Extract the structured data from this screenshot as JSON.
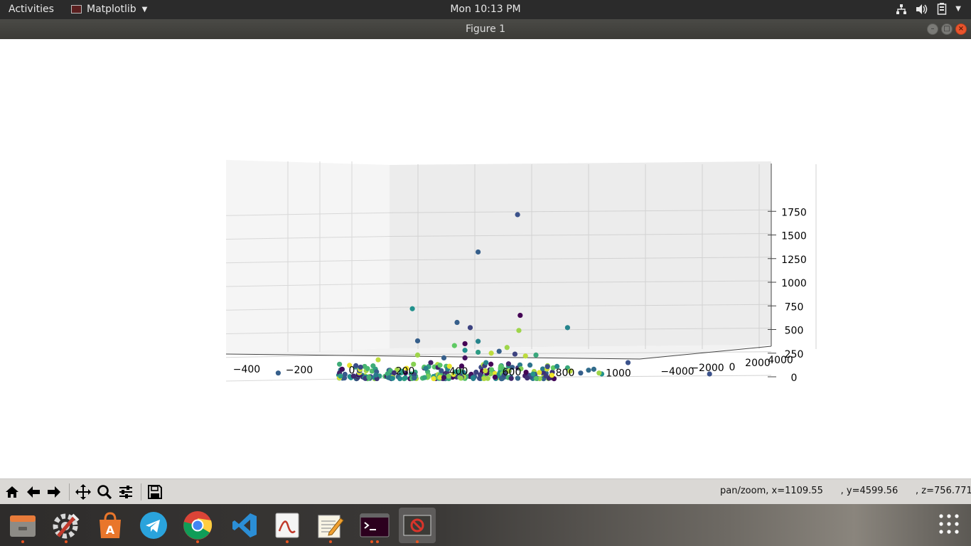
{
  "topbar": {
    "activities": "Activities",
    "app_menu": "Matplotlib",
    "clock": "Mon 10:13 PM",
    "tray_icons": [
      "network-icon",
      "volume-icon",
      "battery-icon",
      "system-menu-caret-icon"
    ]
  },
  "window": {
    "title": "Figure 1",
    "controls": [
      "minimize-icon",
      "maximize-icon",
      "close-icon"
    ]
  },
  "toolbar": {
    "buttons": [
      "home-icon",
      "back-icon",
      "forward-icon",
      "pan-icon",
      "zoom-icon",
      "configure-subplots-icon",
      "save-icon"
    ],
    "status_mode": "pan/zoom, x=1109.55",
    "status_y": ", y=4599.56",
    "status_z": ", z=756.771"
  },
  "dock": {
    "items": [
      "files-icon",
      "system-tools-icon",
      "software-center-icon",
      "telegram-icon",
      "chrome-icon",
      "vscode-icon",
      "pdf-viewer-icon",
      "text-editor-icon",
      "terminal-icon",
      "matplotlib-figure-icon"
    ],
    "show_apps": "show-applications-icon"
  },
  "chart_data": {
    "type": "scatter",
    "dimensions": "3d",
    "title": "",
    "xlabel": "",
    "ylabel": "",
    "zlabel": "",
    "x_ticks": [
      "−400",
      "−200",
      "0",
      "200",
      "400",
      "600",
      "800",
      "1000"
    ],
    "y_ticks": [
      "−4000",
      "−2000",
      "0",
      "2000",
      "4000"
    ],
    "z_ticks": [
      "0",
      "250",
      "500",
      "750",
      "1000",
      "1250",
      "1500",
      "1750"
    ],
    "xlim": [
      -450,
      1050
    ],
    "zlim": [
      -100,
      1800
    ],
    "grid": true,
    "colormap": "viridis",
    "points": [
      {
        "x": 630,
        "z": 1715,
        "c": 0.25
      },
      {
        "x": 480,
        "z": 1320,
        "c": 0.3
      },
      {
        "x": 230,
        "z": 720,
        "c": 0.5
      },
      {
        "x": 640,
        "z": 650,
        "c": 0.0
      },
      {
        "x": 400,
        "z": 575,
        "c": 0.3
      },
      {
        "x": 450,
        "z": 520,
        "c": 0.2
      },
      {
        "x": 635,
        "z": 490,
        "c": 0.85
      },
      {
        "x": 820,
        "z": 520,
        "c": 0.45
      },
      {
        "x": 250,
        "z": 380,
        "c": 0.3
      },
      {
        "x": 480,
        "z": 375,
        "c": 0.45
      },
      {
        "x": 430,
        "z": 350,
        "c": 0.0
      },
      {
        "x": 390,
        "z": 330,
        "c": 0.75
      },
      {
        "x": 590,
        "z": 310,
        "c": 0.85
      },
      {
        "x": 1050,
        "z": 150,
        "c": 0.25
      },
      {
        "x": 1360,
        "z": 30,
        "c": 0.25
      },
      {
        "x": 920,
        "z": 80,
        "c": 0.35
      },
      {
        "x": 950,
        "z": 30,
        "c": 0.5
      },
      {
        "x": -280,
        "z": 40,
        "c": 0.3
      },
      {
        "x": 100,
        "z": 180,
        "c": 0.9
      },
      {
        "x": 250,
        "z": 230,
        "c": 0.85
      },
      {
        "x": 350,
        "z": 200,
        "c": 0.3
      },
      {
        "x": 620,
        "z": 240,
        "c": 0.2
      },
      {
        "x": 700,
        "z": 230,
        "c": 0.6
      },
      {
        "x": 530,
        "z": 250,
        "c": 0.9
      },
      {
        "x": 560,
        "z": 270,
        "c": 0.3
      },
      {
        "x": 660,
        "z": 220,
        "c": 0.9
      },
      {
        "x": 480,
        "z": 260,
        "c": 0.55
      },
      {
        "x": 430,
        "z": 280,
        "c": 0.5
      },
      {
        "x": 300,
        "z": 150,
        "c": 0.1
      },
      {
        "x": 430,
        "z": 200,
        "c": 0.05
      },
      {
        "x": 510,
        "z": 150,
        "c": 0.45
      },
      {
        "x": 610,
        "z": 100,
        "c": 0.3
      },
      {
        "x": 780,
        "z": 110,
        "c": 0.45
      },
      {
        "x": 820,
        "z": 95,
        "c": 0.6
      },
      {
        "x": 870,
        "z": 40,
        "c": 0.3
      },
      {
        "x": 830,
        "z": 60,
        "c": 0.9
      },
      {
        "x": 900,
        "z": 70,
        "c": 0.35
      },
      {
        "x": 940,
        "z": 40,
        "c": 0.85
      }
    ]
  }
}
